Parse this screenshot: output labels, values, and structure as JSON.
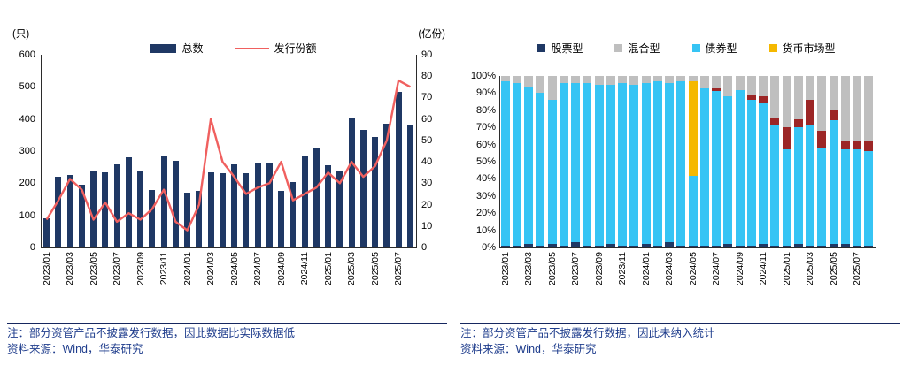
{
  "left_panel": {
    "unit_left": "(只)",
    "unit_right": "(亿份)",
    "legend": [
      {
        "label": "总数",
        "swatch": "bar",
        "color": "#1f3864"
      },
      {
        "label": "发行份额",
        "swatch": "line",
        "color": "#f0605f"
      }
    ],
    "note": "注：部分资管产品不披露发行数据，因此数据比实际数据低",
    "source": "资料来源：Wind，华泰研究"
  },
  "right_panel": {
    "legend": [
      {
        "label": "股票型",
        "color": "#1f3864"
      },
      {
        "label": "混合型",
        "color": "#bfbfbf"
      },
      {
        "label": "债券型",
        "color": "#36c4f4"
      },
      {
        "label": "货币市场型",
        "color": "#f5b800"
      }
    ],
    "note": "注：部分资管产品不披露发行数据，因此未纳入统计",
    "source": "资料来源：Wind，华泰研究"
  },
  "chart_data": [
    {
      "id": "monthly-issuance-count-and-share",
      "type": "bar",
      "x": [
        "2023/01",
        "2023/02",
        "2023/03",
        "2023/04",
        "2023/05",
        "2023/06",
        "2023/07",
        "2023/08",
        "2023/09",
        "2023/10",
        "2023/11",
        "2023/12",
        "2024/01",
        "2024/02",
        "2024/03",
        "2024/04",
        "2024/05",
        "2024/06",
        "2024/07",
        "2024/08",
        "2024/09",
        "2024/10",
        "2024/11",
        "2024/12",
        "2025/01",
        "2025/02",
        "2025/03",
        "2025/04",
        "2025/05",
        "2025/06",
        "2025/07",
        "2025/08"
      ],
      "x_tick_labels": [
        "2023/01",
        "2023/03",
        "2023/05",
        "2023/07",
        "2023/09",
        "2023/11",
        "2024/01",
        "2024/03",
        "2024/05",
        "2024/07",
        "2024/09",
        "2024/11",
        "2025/01",
        "2025/03",
        "2025/05",
        "2025/07"
      ],
      "series": [
        {
          "name": "总数",
          "chart": "bar",
          "axis": "left",
          "color": "#1f3864",
          "values": [
            90,
            220,
            225,
            195,
            240,
            235,
            260,
            280,
            240,
            180,
            285,
            270,
            170,
            175,
            235,
            230,
            260,
            230,
            265,
            265,
            175,
            205,
            285,
            310,
            255,
            240,
            405,
            365,
            345,
            385,
            485,
            380
          ]
        },
        {
          "name": "发行份额",
          "chart": "line",
          "axis": "right",
          "color": "#f0605f",
          "values": [
            13,
            22,
            32,
            27,
            13,
            21,
            12,
            16,
            13,
            18,
            27,
            12,
            8,
            20,
            60,
            40,
            33,
            25,
            28,
            30,
            40,
            22,
            25,
            28,
            35,
            30,
            40,
            33,
            38,
            50,
            78,
            75
          ]
        }
      ],
      "ylabel_left": "(只)",
      "ylim_left": [
        0,
        600
      ],
      "ytick_step_left": 100,
      "ylabel_right": "(亿份)",
      "ylim_right": [
        0,
        90
      ],
      "ytick_step_right": 10,
      "legend_position": "top",
      "grid": false
    },
    {
      "id": "issuance-structure-by-type",
      "type": "bar",
      "stacked_percent": true,
      "x": [
        "2023/01",
        "2023/02",
        "2023/03",
        "2023/04",
        "2023/05",
        "2023/06",
        "2023/07",
        "2023/08",
        "2023/09",
        "2023/10",
        "2023/11",
        "2023/12",
        "2024/01",
        "2024/02",
        "2024/03",
        "2024/04",
        "2024/05",
        "2024/06",
        "2024/07",
        "2024/08",
        "2024/09",
        "2024/10",
        "2024/11",
        "2024/12",
        "2025/01",
        "2025/02",
        "2025/03",
        "2025/04",
        "2025/05",
        "2025/06",
        "2025/07",
        "2025/08"
      ],
      "x_tick_labels": [
        "2023/01",
        "2023/03",
        "2023/05",
        "2023/07",
        "2023/09",
        "2023/11",
        "2024/01",
        "2024/03",
        "2024/05",
        "2024/07",
        "2024/09",
        "2024/11",
        "2025/01",
        "2025/03",
        "2025/05",
        "2025/07"
      ],
      "series": [
        {
          "name": "股票型",
          "color": "#1f3864",
          "values": [
            1,
            1,
            2,
            1,
            2,
            1,
            3,
            1,
            1,
            2,
            1,
            1,
            2,
            1,
            3,
            1,
            1,
            1,
            1,
            2,
            1,
            1,
            2,
            1,
            1,
            2,
            1,
            1,
            2,
            2,
            1,
            1
          ]
        },
        {
          "name": "债券型",
          "color": "#36c4f4",
          "values": [
            96,
            95,
            92,
            89,
            84,
            95,
            93,
            95,
            94,
            93,
            95,
            94,
            94,
            96,
            93,
            96,
            41,
            92,
            90,
            86,
            91,
            85,
            82,
            70,
            56,
            68,
            70,
            57,
            72,
            55,
            56,
            55
          ]
        },
        {
          "name": "unlabeled-dark-red",
          "color": "#9c2626",
          "values": [
            0,
            0,
            0,
            0,
            0,
            0,
            0,
            0,
            0,
            0,
            0,
            0,
            0,
            0,
            0,
            0,
            0,
            0,
            2,
            0,
            0,
            3,
            4,
            5,
            13,
            5,
            15,
            10,
            6,
            5,
            5,
            6
          ]
        },
        {
          "name": "货币市场型",
          "color": "#f5b800",
          "values": [
            0,
            0,
            0,
            0,
            0,
            0,
            0,
            0,
            0,
            0,
            0,
            0,
            0,
            0,
            0,
            0,
            55,
            0,
            0,
            0,
            0,
            0,
            0,
            0,
            0,
            0,
            0,
            0,
            0,
            0,
            0,
            0
          ]
        },
        {
          "name": "混合型",
          "color": "#bfbfbf",
          "values": [
            3,
            4,
            6,
            10,
            14,
            4,
            4,
            4,
            5,
            5,
            4,
            5,
            4,
            3,
            4,
            3,
            3,
            7,
            7,
            12,
            8,
            11,
            12,
            24,
            30,
            25,
            14,
            32,
            20,
            38,
            38,
            38
          ]
        }
      ],
      "ylim": [
        0,
        100
      ],
      "yticks": [
        "0%",
        "10%",
        "20%",
        "30%",
        "40%",
        "50%",
        "60%",
        "70%",
        "80%",
        "90%",
        "100%"
      ],
      "legend_position": "top",
      "grid": false
    }
  ]
}
